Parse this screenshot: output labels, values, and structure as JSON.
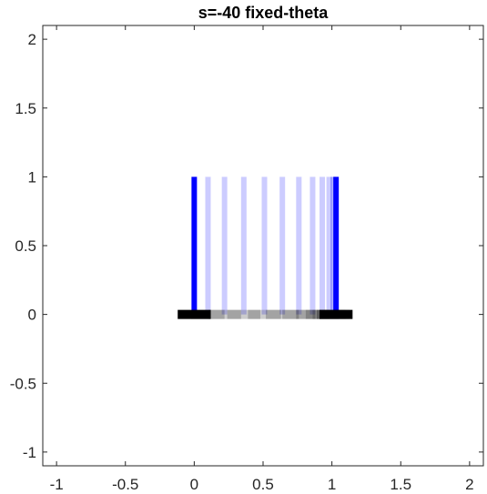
{
  "chart_data": {
    "type": "line",
    "title": "s=-40 fixed-theta",
    "xlabel": "",
    "ylabel": "",
    "xlim": [
      -1.1,
      2.1
    ],
    "ylim": [
      -1.1,
      2.1
    ],
    "xticks": [
      -1,
      -0.5,
      0,
      0.5,
      1,
      1.5,
      2
    ],
    "yticks": [
      -1,
      -0.5,
      0,
      0.5,
      1,
      1.5,
      2
    ],
    "xtick_labels": [
      "-1",
      "-0.5",
      "0",
      "0.5",
      "1",
      "1.5",
      "2"
    ],
    "ytick_labels": [
      "-1",
      "-0.5",
      "0",
      "0.5",
      "1",
      "1.5",
      "2"
    ],
    "grid": false,
    "colors": {
      "pole": "#0000ff",
      "cart": "#000000",
      "axes": "#262626"
    },
    "frames": [
      {
        "x": 0.0,
        "opacity": 1.0
      },
      {
        "x": 0.1,
        "opacity": 0.2
      },
      {
        "x": 0.22,
        "opacity": 0.2
      },
      {
        "x": 0.36,
        "opacity": 0.2
      },
      {
        "x": 0.51,
        "opacity": 0.2
      },
      {
        "x": 0.64,
        "opacity": 0.2
      },
      {
        "x": 0.76,
        "opacity": 0.2
      },
      {
        "x": 0.86,
        "opacity": 0.2
      },
      {
        "x": 0.93,
        "opacity": 0.2
      },
      {
        "x": 0.98,
        "opacity": 0.2
      },
      {
        "x": 1.01,
        "opacity": 0.3
      },
      {
        "x": 1.03,
        "opacity": 1.0
      }
    ],
    "pole_length": 1,
    "cart_half_width": 0.12
  }
}
